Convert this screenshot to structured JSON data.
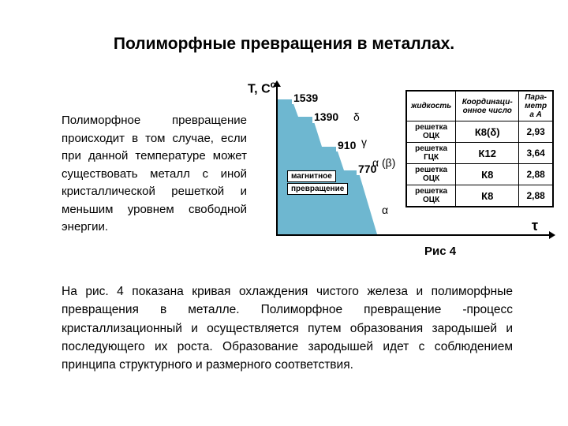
{
  "title": "Полиморфные превращения в металлах.",
  "intro": "Полиморфное превращение происходит в том случае, если при данной температуре может существовать металл с иной кристаллической решеткой и меньшим уровнем свободной энергии.",
  "body": "На рис. 4 показана кривая охлаждения чистого железа и полиморфные превращения в металле. Полиморфное превращение -процесс кристаллизационный и осуществляется путем образования зародышей и последующего их роста. Образование зародышей идет с соблюдением принципа структурного и размерного соответствия.",
  "figure": {
    "caption": "Рис 4",
    "y_axis": "Т, С",
    "y_axis_sup": "о",
    "x_axis": "τ",
    "magnetic_label1": "магнитное",
    "magnetic_label2": "превращение",
    "temps": {
      "t1": "1539",
      "t2": "1390",
      "t3": "910",
      "t4": "770"
    },
    "phases": {
      "delta": "δ",
      "gamma": "γ",
      "alpha_beta": "α (β)",
      "alpha": "α"
    },
    "curve_color": "#6eb7d0",
    "table": {
      "headers": {
        "h1": "жидкость",
        "h2": "Координаци-онное число",
        "h3": "Пара-метр а А"
      },
      "rows": [
        {
          "lattice": "решетка ОЦК",
          "coord": "К8(δ)",
          "param": "2,93"
        },
        {
          "lattice": "решетка ГЦК",
          "coord": "К12",
          "param": "3,64"
        },
        {
          "lattice": "решетка ОЦК",
          "coord": "К8",
          "param": "2,88"
        },
        {
          "lattice": "решетка ОЦК",
          "coord": "К8",
          "param": "2,88"
        }
      ]
    }
  }
}
